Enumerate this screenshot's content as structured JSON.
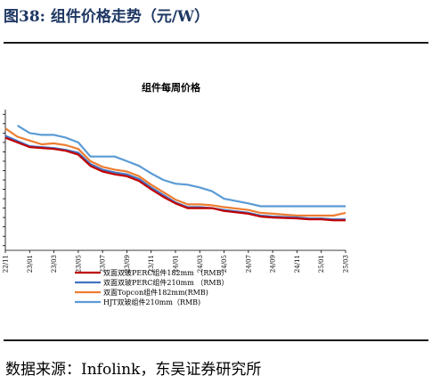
{
  "figure_title": "图38:  组件价格走势（元/W）",
  "source": "数据来源：Infolink，东吴证券研究所",
  "colors": {
    "title": "#1f3864",
    "series": [
      "#c00000",
      "#4472c4",
      "#ed7d31",
      "#5b9bd5"
    ]
  },
  "chart_data": {
    "type": "line",
    "title": "组件每周价格",
    "x_ticks": [
      "22/11",
      "23/01",
      "23/03",
      "23/05",
      "23/07",
      "23/09",
      "23/11",
      "24/01",
      "24/03",
      "24/05",
      "24/07",
      "24/09",
      "24/11",
      "25/01",
      "25/03"
    ],
    "xlim": [
      0,
      28
    ],
    "ylim": [
      0.55,
      2.05
    ],
    "y_tick_values": [
      0.6,
      0.7,
      0.8,
      0.9,
      1.0,
      1.1,
      1.2,
      1.3,
      1.4,
      1.5,
      1.6,
      1.7,
      1.8,
      1.9,
      2.0
    ],
    "legend_position": "bottom-left",
    "series": [
      {
        "name": "双面双玻PERC组件182mm （RMB）",
        "x": [
          0,
          2,
          4,
          5,
          6,
          7,
          8,
          9,
          10,
          11,
          12,
          13,
          14,
          15,
          16,
          17,
          18,
          20,
          21,
          22,
          24,
          25,
          26,
          27,
          28
        ],
        "y": [
          1.75,
          1.65,
          1.63,
          1.61,
          1.57,
          1.45,
          1.39,
          1.36,
          1.34,
          1.29,
          1.2,
          1.12,
          1.05,
          1.0,
          1.0,
          1.0,
          0.97,
          0.94,
          0.91,
          0.9,
          0.89,
          0.88,
          0.88,
          0.87,
          0.87
        ]
      },
      {
        "name": "双面双玻PERC组件210mm （RMB）",
        "x": [
          0,
          2,
          4,
          5,
          6,
          7,
          8,
          9,
          10,
          11,
          12,
          13,
          14,
          15,
          16,
          17,
          18,
          20,
          21,
          22,
          24,
          25,
          26,
          27,
          28
        ],
        "y": [
          1.77,
          1.66,
          1.64,
          1.62,
          1.59,
          1.47,
          1.41,
          1.38,
          1.36,
          1.31,
          1.22,
          1.14,
          1.06,
          1.01,
          1.01,
          1.0,
          0.98,
          0.95,
          0.92,
          0.91,
          0.9,
          0.89,
          0.89,
          0.88,
          0.88
        ]
      },
      {
        "name": "双面Topcon组件182mm(RMB)",
        "x": [
          0,
          1,
          2,
          3,
          4,
          5,
          6,
          7,
          8,
          9,
          10,
          11,
          12,
          13,
          14,
          15,
          16,
          17,
          18,
          20,
          21,
          22,
          24,
          25,
          26,
          27,
          28
        ],
        "y": [
          1.85,
          1.76,
          1.72,
          1.68,
          1.69,
          1.67,
          1.63,
          1.5,
          1.44,
          1.41,
          1.39,
          1.34,
          1.25,
          1.17,
          1.09,
          1.04,
          1.04,
          1.03,
          1.01,
          0.98,
          0.95,
          0.94,
          0.92,
          0.92,
          0.92,
          0.92,
          0.95
        ]
      },
      {
        "name": "HJT双玻组件210mm（RMB)",
        "x": [
          1,
          2,
          3,
          4,
          5,
          6,
          7,
          8,
          9,
          10,
          11,
          12,
          13,
          14,
          15,
          16,
          17,
          18,
          20,
          21,
          22,
          24,
          25,
          26,
          27,
          28
        ],
        "y": [
          1.88,
          1.8,
          1.78,
          1.78,
          1.75,
          1.7,
          1.55,
          1.55,
          1.55,
          1.5,
          1.45,
          1.37,
          1.3,
          1.26,
          1.25,
          1.22,
          1.18,
          1.1,
          1.05,
          1.02,
          1.02,
          1.02,
          1.02,
          1.02,
          1.02,
          1.02
        ]
      }
    ]
  }
}
